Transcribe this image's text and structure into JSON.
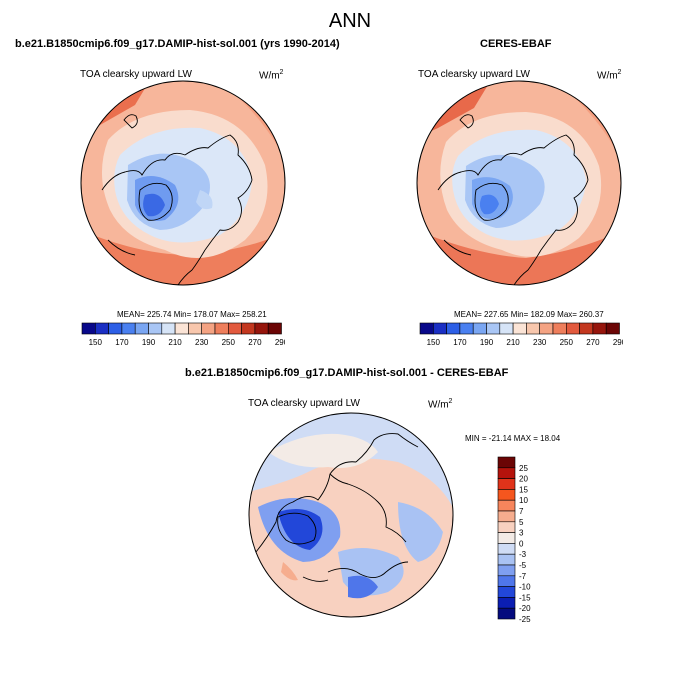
{
  "figure": {
    "title": "ANN"
  },
  "panels": [
    {
      "id": "model",
      "heading": "b.e21.B1850cmip6.f09_g17.DAMIP-hist-sol.001 (yrs 1990-2014)",
      "variable_label": "TOA clearsky upward LW",
      "units": "W/m",
      "units_exponent": "2",
      "stats": "MEAN= 225.74  Min= 178.07  Max= 258.21",
      "mean": 225.74,
      "min": 178.07,
      "max": 258.21
    },
    {
      "id": "obs",
      "heading": "CERES-EBAF",
      "variable_label": "TOA clearsky upward LW",
      "units": "W/m",
      "units_exponent": "2",
      "stats": "MEAN= 227.65  Min= 182.09  Max= 260.37",
      "mean": 227.65,
      "min": 182.09,
      "max": 260.37
    },
    {
      "id": "diff",
      "heading": "b.e21.B1850cmip6.f09_g17.DAMIP-hist-sol.001 - CERES-EBAF",
      "variable_label": "TOA clearsky upward LW",
      "units": "W/m",
      "units_exponent": "2",
      "stats": "MIN = -21.14 MAX =  18.04",
      "min": -21.14,
      "max": 18.04
    }
  ],
  "colorbar_main": {
    "colors": [
      "#08088a",
      "#1a2fc4",
      "#2d5fe6",
      "#4a80f0",
      "#7aa6f2",
      "#a9c6f5",
      "#d6e4f7",
      "#fbe4d6",
      "#f8c7ad",
      "#f4a383",
      "#ee7e5c",
      "#e25a3e",
      "#c3371f",
      "#96150c",
      "#6b0505"
    ],
    "tick_labels": [
      "150",
      "170",
      "190",
      "210",
      "230",
      "250",
      "270",
      "290"
    ]
  },
  "colorbar_diff": {
    "colors": [
      "#6b0505",
      "#b5130c",
      "#e0331a",
      "#f5561e",
      "#f7855c",
      "#f6ad8e",
      "#f8d1c0",
      "#f3ebe6",
      "#cfdcf5",
      "#a9c2f3",
      "#7f9ff0",
      "#4f76ea",
      "#2247d9",
      "#0b1eb3",
      "#050b7e"
    ],
    "tick_labels": [
      "25",
      "20",
      "15",
      "10",
      "7",
      "5",
      "3",
      "0",
      "-3",
      "-5",
      "-7",
      "-10",
      "-15",
      "-20",
      "-25"
    ]
  }
}
